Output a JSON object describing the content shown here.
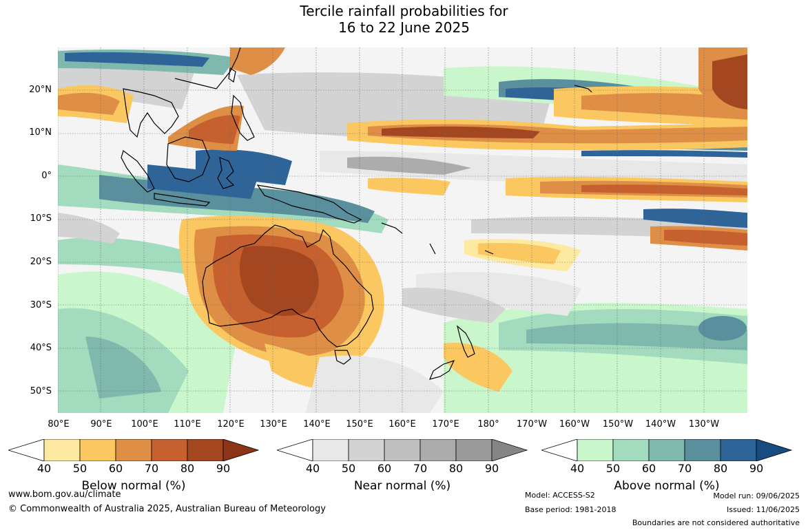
{
  "title_line1": "Tercile rainfall probabilities for",
  "title_line2": "16 to 22 June 2025",
  "lat_labels": [
    "20°N",
    "10°N",
    "0°",
    "10°S",
    "20°S",
    "30°S",
    "40°S",
    "50°S"
  ],
  "lon_labels": [
    "80°E",
    "90°E",
    "100°E",
    "110°E",
    "120°E",
    "130°E",
    "140°E",
    "150°E",
    "160°E",
    "170°E",
    "180°",
    "170°W",
    "160°W",
    "150°W",
    "140°W",
    "130°W"
  ],
  "colorbars": [
    {
      "title": "Below normal (%)",
      "ticks": [
        "40",
        "50",
        "60",
        "70",
        "80",
        "90"
      ],
      "colors": [
        "#ffffff",
        "#fde9a0",
        "#fbc760",
        "#de8f45",
        "#c6602f",
        "#a4461f",
        "#8c3318"
      ]
    },
    {
      "title": "Near normal (%)",
      "ticks": [
        "40",
        "50",
        "60",
        "70",
        "80",
        "90"
      ],
      "colors": [
        "#ffffff",
        "#e8e8e8",
        "#d3d3d3",
        "#bfbfbf",
        "#acacac",
        "#9a9a9a",
        "#858585"
      ]
    },
    {
      "title": "Above normal (%)",
      "ticks": [
        "40",
        "50",
        "60",
        "70",
        "80",
        "90"
      ],
      "colors": [
        "#ffffff",
        "#c9f7cb",
        "#a2dbbd",
        "#7fb9ae",
        "#5a8f9e",
        "#2f6499",
        "#174c82"
      ]
    }
  ],
  "footer": {
    "website": "www.bom.gov.au/climate",
    "copyright": "© Commonwealth of Australia 2025, Australian Bureau of Meteorology",
    "model": "Model: ACCESS-S2",
    "base_period": "Base period: 1981-2018",
    "model_run": "Model run: 09/06/2025",
    "issued": "Issued: 11/06/2025",
    "disclaimer": "Boundaries are not considered authoritative"
  }
}
